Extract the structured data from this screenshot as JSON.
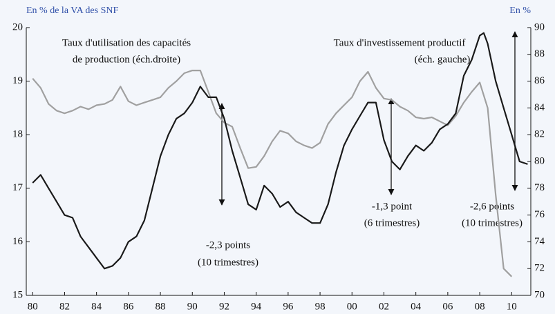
{
  "chart_data": {
    "type": "line",
    "left_axis_title": "En % de la VA des SNF",
    "right_axis_title": "En %",
    "xlim": [
      1979.6,
      2011.2
    ],
    "xticks": [
      {
        "value": 1980,
        "label": "80"
      },
      {
        "value": 1982,
        "label": "82"
      },
      {
        "value": 1984,
        "label": "84"
      },
      {
        "value": 1986,
        "label": "86"
      },
      {
        "value": 1988,
        "label": "88"
      },
      {
        "value": 1990,
        "label": "90"
      },
      {
        "value": 1992,
        "label": "92"
      },
      {
        "value": 1994,
        "label": "94"
      },
      {
        "value": 1996,
        "label": "96"
      },
      {
        "value": 1998,
        "label": "98"
      },
      {
        "value": 2000,
        "label": "00"
      },
      {
        "value": 2002,
        "label": "02"
      },
      {
        "value": 2004,
        "label": "04"
      },
      {
        "value": 2006,
        "label": "06"
      },
      {
        "value": 2008,
        "label": "08"
      },
      {
        "value": 2010,
        "label": "10"
      }
    ],
    "ylim": [
      15,
      20
    ],
    "yticks": [
      15,
      16,
      17,
      18,
      19,
      20
    ],
    "y2lim": [
      70,
      90
    ],
    "y2ticks": [
      70,
      72,
      74,
      76,
      78,
      80,
      82,
      84,
      86,
      88,
      90
    ],
    "series": [
      {
        "name": [
          "Taux d'investissement productif",
          "(éch. gauche)"
        ],
        "color": "#1a1a1a",
        "axis": "y",
        "x": [
          1980,
          1980.5,
          1981,
          1981.5,
          1982,
          1982.5,
          1983,
          1983.5,
          1984,
          1984.5,
          1985,
          1985.5,
          1986,
          1986.5,
          1987,
          1987.5,
          1988,
          1988.5,
          1989,
          1989.5,
          1990,
          1990.5,
          1991,
          1991.5,
          1992,
          1992.5,
          1993,
          1993.5,
          1994,
          1994.5,
          1995,
          1995.5,
          1996,
          1996.5,
          1997,
          1997.5,
          1998,
          1998.5,
          1999,
          1999.5,
          2000,
          2000.5,
          2001,
          2001.5,
          2002,
          2002.5,
          2003,
          2003.5,
          2004,
          2004.5,
          2005,
          2005.5,
          2006,
          2006.5,
          2007,
          2007.5,
          2008,
          2008.25,
          2008.5,
          2009,
          2009.5,
          2010,
          2010.5,
          2011
        ],
        "values": [
          17.1,
          17.25,
          17.0,
          16.75,
          16.5,
          16.45,
          16.1,
          15.9,
          15.7,
          15.5,
          15.55,
          15.7,
          16.0,
          16.1,
          16.4,
          17.0,
          17.6,
          18.0,
          18.3,
          18.4,
          18.6,
          18.9,
          18.7,
          18.7,
          18.3,
          17.7,
          17.2,
          16.7,
          16.6,
          17.05,
          16.9,
          16.65,
          16.75,
          16.55,
          16.45,
          16.35,
          16.35,
          16.7,
          17.3,
          17.8,
          18.1,
          18.35,
          18.6,
          18.6,
          17.9,
          17.5,
          17.35,
          17.6,
          17.8,
          17.7,
          17.85,
          18.1,
          18.2,
          18.4,
          19.1,
          19.4,
          19.85,
          19.9,
          19.7,
          19.0,
          18.5,
          18.0,
          17.5,
          17.45
        ]
      },
      {
        "name": [
          "Taux d'utilisation des capacités",
          "de production (éch.droite)"
        ],
        "color": "#a0a0a0",
        "axis": "y2",
        "x": [
          1980,
          1980.5,
          1981,
          1981.5,
          1982,
          1982.5,
          1983,
          1983.5,
          1984,
          1984.5,
          1985,
          1985.5,
          1986,
          1986.5,
          1987,
          1987.5,
          1988,
          1988.5,
          1989,
          1989.5,
          1990,
          1990.5,
          1991,
          1991.5,
          1992,
          1992.5,
          1993,
          1993.5,
          1994,
          1994.5,
          1995,
          1995.5,
          1996,
          1996.5,
          1997,
          1997.5,
          1998,
          1998.5,
          1999,
          1999.5,
          2000,
          2000.5,
          2001,
          2001.5,
          2002,
          2002.5,
          2003,
          2003.5,
          2004,
          2004.5,
          2005,
          2005.5,
          2006,
          2006.5,
          2007,
          2007.5,
          2008,
          2008.5,
          2009,
          2009.5,
          2010
        ],
        "values": [
          86.2,
          85.5,
          84.3,
          83.8,
          83.6,
          83.8,
          84.1,
          83.9,
          84.2,
          84.3,
          84.6,
          85.6,
          84.5,
          84.2,
          84.4,
          84.6,
          84.8,
          85.5,
          86.0,
          86.6,
          86.8,
          86.8,
          85.2,
          83.6,
          82.9,
          82.6,
          81.0,
          79.5,
          79.6,
          80.4,
          81.5,
          82.3,
          82.1,
          81.5,
          81.2,
          81.0,
          81.4,
          82.8,
          83.6,
          84.2,
          84.8,
          86.0,
          86.7,
          85.5,
          84.7,
          84.6,
          84.1,
          83.8,
          83.3,
          83.2,
          83.3,
          83.0,
          82.7,
          83.4,
          84.4,
          85.2,
          85.9,
          84.0,
          77.5,
          72.0,
          71.4
        ]
      }
    ],
    "annotations": [
      [
        "-2,3 points",
        "(10 trimestres)"
      ],
      [
        "-1,3 point",
        "(6 trimestres)"
      ],
      [
        "-2,6 points",
        "(10 trimestres)"
      ]
    ]
  }
}
